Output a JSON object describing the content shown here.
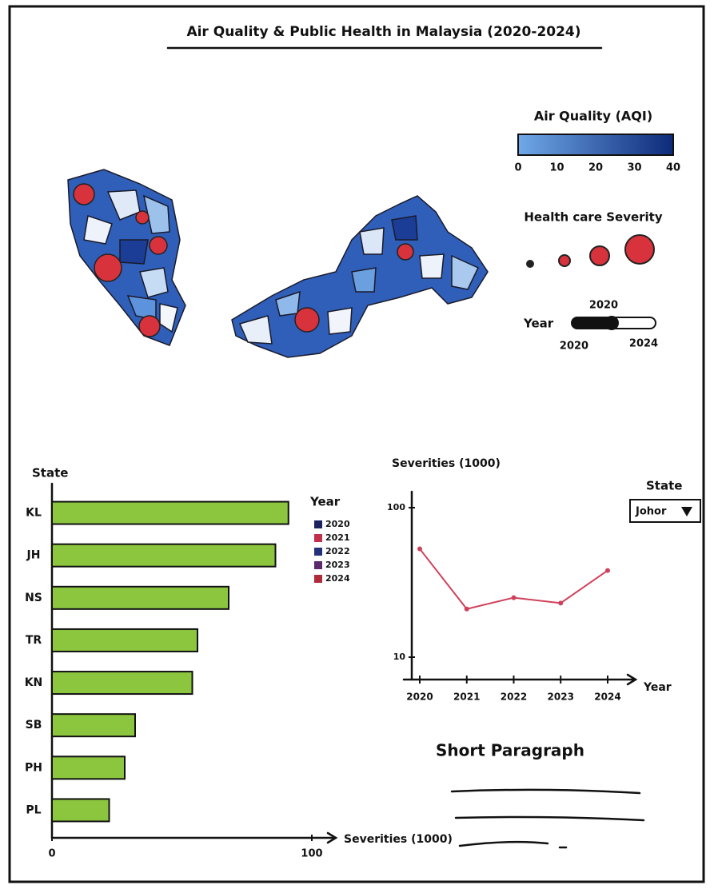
{
  "header": {
    "title": "Air Quality & Public Health in Malaysia (2020-2024)"
  },
  "map_legend": {
    "aqi_title": "Air Quality (AQI)",
    "aqi_ticks": [
      0,
      10,
      20,
      30,
      40
    ],
    "aqi_range": [
      0,
      40
    ],
    "severity_title": "Health care Severity",
    "year_label": "Year",
    "year_selected": "2020",
    "year_min": "2020",
    "year_max": "2024"
  },
  "chart_data": [
    {
      "type": "bar",
      "orientation": "horizontal",
      "y_label": "State",
      "x_label": "Severities (1000)",
      "categories": [
        "KL",
        "JH",
        "NS",
        "TR",
        "KN",
        "SB",
        "PH",
        "PL"
      ],
      "values": [
        91,
        86,
        68,
        56,
        54,
        32,
        28,
        22
      ],
      "color": "#8cc63f",
      "xlim": [
        0,
        100
      ],
      "xticks": [
        0,
        100
      ],
      "legend": {
        "title": "Year",
        "items": [
          {
            "name": "2020",
            "color": "#1c2260"
          },
          {
            "name": "2021",
            "color": "#c0304a"
          },
          {
            "name": "2022",
            "color": "#23307a"
          },
          {
            "name": "2023",
            "color": "#5a2a6a"
          },
          {
            "name": "2024",
            "color": "#b02a3a"
          }
        ]
      }
    },
    {
      "type": "line",
      "y_label": "Severities (1000)",
      "x_label": "Year",
      "x": [
        2020,
        2021,
        2022,
        2023,
        2024
      ],
      "series": [
        {
          "name": "Johor",
          "color": "#d0405a",
          "values": [
            53,
            21,
            25,
            23,
            38
          ]
        }
      ],
      "xlim": [
        2020,
        2024
      ],
      "xticks": [
        2020,
        2021,
        2022,
        2023,
        2024
      ],
      "ylim": [
        10,
        100
      ],
      "yticks": [
        10,
        100
      ],
      "log_scale": true,
      "filter_label": "State",
      "filter_value": "Johor"
    }
  ],
  "paragraph": {
    "title": "Short Paragraph"
  }
}
